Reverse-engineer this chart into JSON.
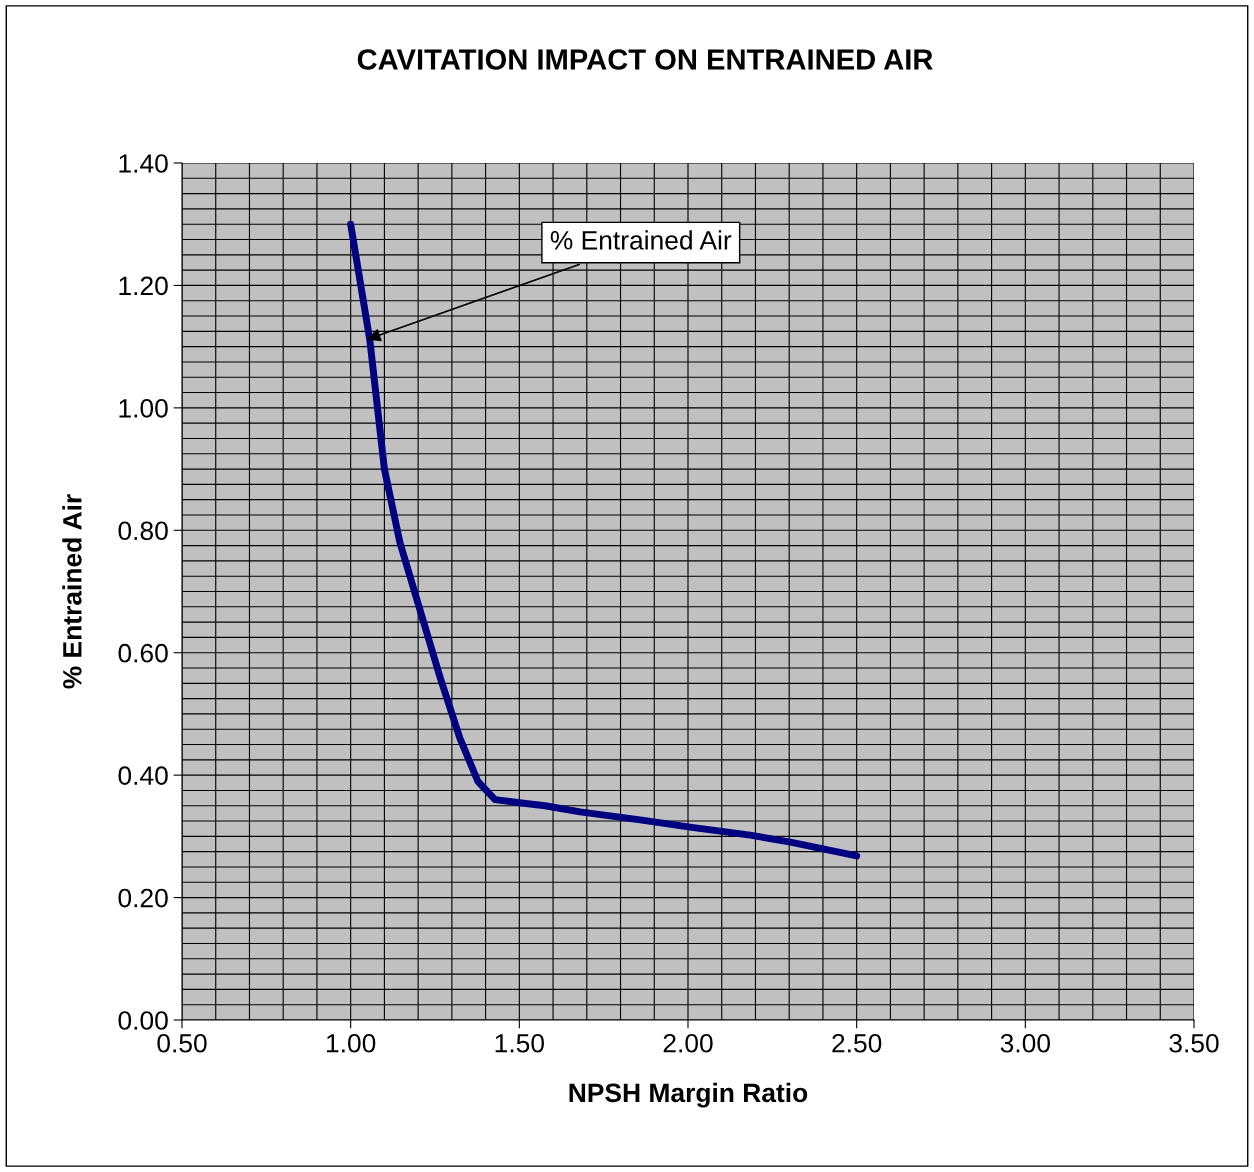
{
  "chart_data": {
    "type": "line",
    "title": "CAVITATION IMPACT ON ENTRAINED AIR",
    "xlabel": "NPSH Margin Ratio",
    "ylabel": "% Entrained Air",
    "x": [
      1.0,
      1.057,
      1.1,
      1.146,
      1.2,
      1.265,
      1.324,
      1.377,
      1.428,
      1.5,
      1.576,
      1.68,
      1.858,
      2.006,
      2.184,
      2.3,
      2.5
    ],
    "series": [
      {
        "color": "#000080",
        "values": [
          1.3,
          1.11,
          0.9,
          0.78,
          0.68,
          0.56,
          0.46,
          0.39,
          0.36,
          0.355,
          0.35,
          0.34,
          0.327,
          0.315,
          0.302,
          0.291,
          0.268
        ]
      }
    ],
    "xlim": [
      0.5,
      3.5
    ],
    "ylim": [
      0,
      1.4
    ],
    "xticks": [
      {
        "value": 0.5,
        "label": "0.50"
      },
      {
        "value": 1.0,
        "label": "1.00"
      },
      {
        "value": 1.5,
        "label": "1.50"
      },
      {
        "value": 2.0,
        "label": "2.00"
      },
      {
        "value": 2.5,
        "label": "2.50"
      },
      {
        "value": 3.0,
        "label": "3.00"
      },
      {
        "value": 3.5,
        "label": "3.50"
      }
    ],
    "yticks": [
      {
        "value": 0,
        "label": "0.00"
      },
      {
        "value": 0.2,
        "label": "0.20"
      },
      {
        "value": 0.4,
        "label": "0.40"
      },
      {
        "value": 0.6,
        "label": "0.60"
      },
      {
        "value": 0.8,
        "label": "0.80"
      },
      {
        "value": 1.0,
        "label": "1.00"
      },
      {
        "value": 1.2,
        "label": "1.20"
      },
      {
        "value": 1.4,
        "label": "1.40"
      }
    ],
    "grid": true,
    "marker": "none",
    "line_style": "solid",
    "annotations": [
      {
        "text": "% Entrained Air",
        "x": 1.04,
        "y": 1.11
      }
    ]
  }
}
